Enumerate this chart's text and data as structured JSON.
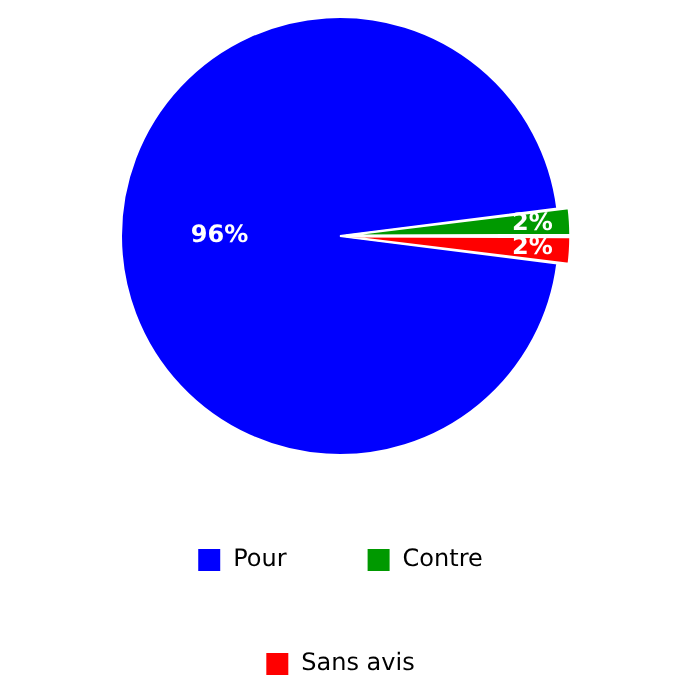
{
  "chart_data": {
    "type": "pie",
    "categories": [
      "Pour",
      "Contre",
      "Sans avis"
    ],
    "values": [
      96,
      2,
      2
    ],
    "colors": [
      "#0000ff",
      "#009900",
      "#ff0000"
    ],
    "value_labels": [
      "96%",
      "2%",
      "2%"
    ],
    "legend": "bottom"
  }
}
